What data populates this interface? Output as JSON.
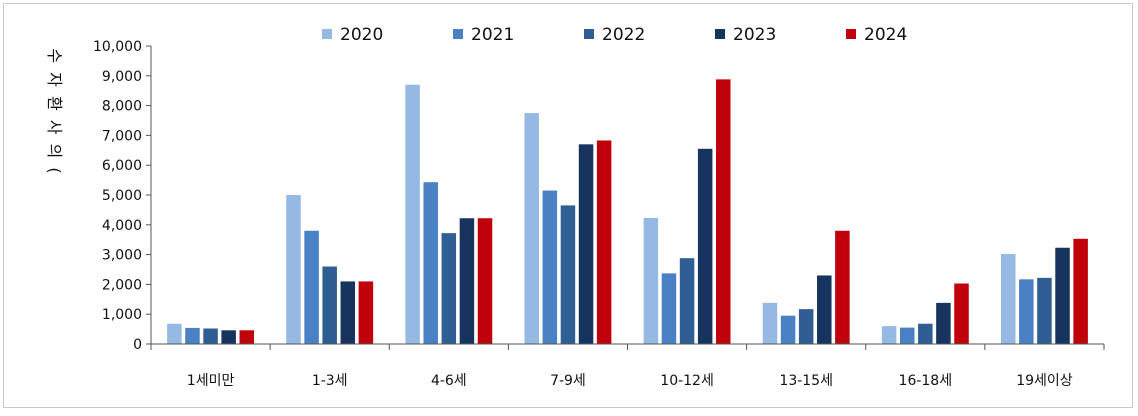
{
  "chart_data": {
    "type": "bar",
    "ylabel": "수진자수(실인원)",
    "ylabel_visible": "수 자 환 사 의 (",
    "ylim": [
      0,
      10000
    ],
    "yticks": [
      "0",
      "1,000",
      "2,000",
      "3,000",
      "4,000",
      "5,000",
      "6,000",
      "7,000",
      "8,000",
      "9,000",
      "10,000"
    ],
    "ytick_values": [
      0,
      1000,
      2000,
      3000,
      4000,
      5000,
      6000,
      7000,
      8000,
      9000,
      10000
    ],
    "categories": [
      "1세미만",
      "1-3세",
      "4-6세",
      "7-9세",
      "10-12세",
      "13-15세",
      "16-18세",
      "19세이상"
    ],
    "legend_position": "top",
    "grid": false,
    "series": [
      {
        "name": "2020",
        "color": "#95b9e3",
        "values": [
          680,
          5000,
          8700,
          7750,
          4230,
          1380,
          600,
          3020
        ]
      },
      {
        "name": "2021",
        "color": "#4a80c4",
        "values": [
          540,
          3800,
          5430,
          5150,
          2370,
          950,
          550,
          2170
        ]
      },
      {
        "name": "2022",
        "color": "#2e5e94",
        "values": [
          520,
          2600,
          3720,
          4650,
          2880,
          1170,
          680,
          2220
        ]
      },
      {
        "name": "2023",
        "color": "#16345e",
        "values": [
          460,
          2100,
          4220,
          6700,
          6550,
          2300,
          1380,
          3230
        ]
      },
      {
        "name": "2024",
        "color": "#c0000b",
        "values": [
          460,
          2100,
          4220,
          6830,
          8880,
          3800,
          2030,
          3530
        ]
      }
    ]
  }
}
